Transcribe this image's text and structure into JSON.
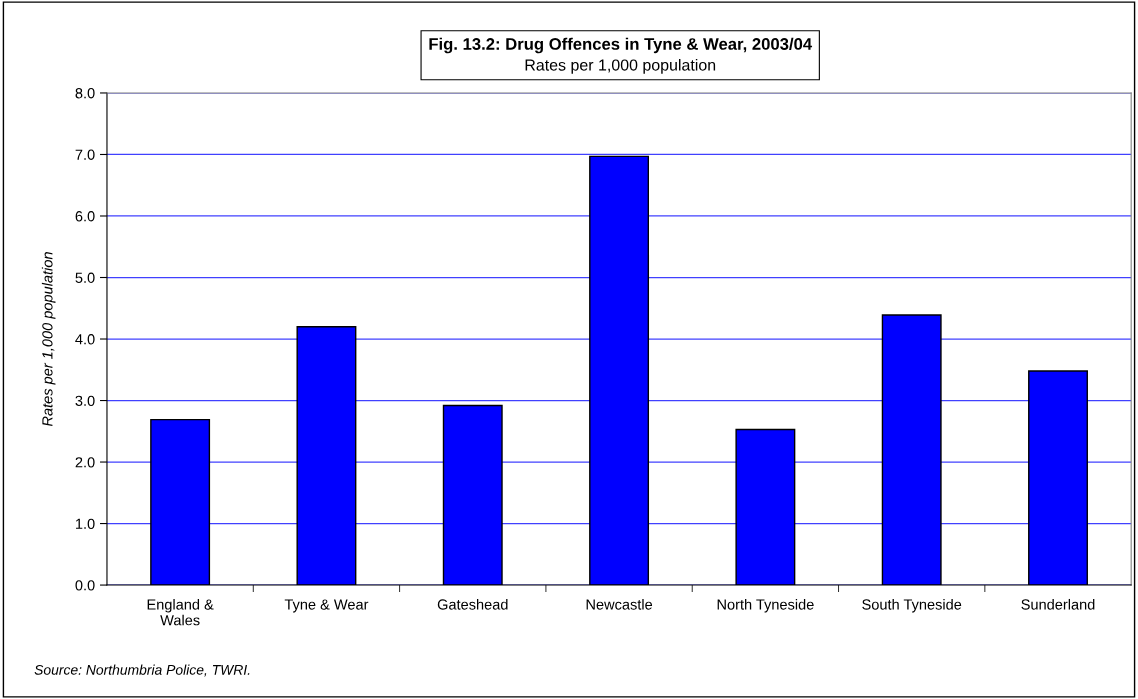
{
  "chart_data": {
    "type": "bar",
    "title": "Fig. 13.2: Drug Offences in Tyne & Wear, 2003/04",
    "subtitle": "Rates per 1,000 population",
    "ylabel": "Rates per 1,000 population",
    "categories": [
      "England &\nWales",
      "Tyne & Wear",
      "Gateshead",
      "Newcastle",
      "North Tyneside",
      "South Tyneside",
      "Sunderland"
    ],
    "values": [
      2.69,
      4.2,
      2.92,
      6.97,
      2.53,
      4.39,
      3.48
    ],
    "color": "#0000ff",
    "ylim": [
      0,
      8
    ],
    "yticks": [
      {
        "value": 0,
        "label": "0.0"
      },
      {
        "value": 1,
        "label": "1.0"
      },
      {
        "value": 2,
        "label": "2.0"
      },
      {
        "value": 3,
        "label": "3.0"
      },
      {
        "value": 4,
        "label": "4.0"
      },
      {
        "value": 5,
        "label": "5.0"
      },
      {
        "value": 6,
        "label": "6.0"
      },
      {
        "value": 7,
        "label": "7.0"
      },
      {
        "value": 8,
        "label": "8.0"
      }
    ],
    "grid": "y",
    "annotations": [
      "Source: Northumbria Police, TWRI."
    ]
  }
}
